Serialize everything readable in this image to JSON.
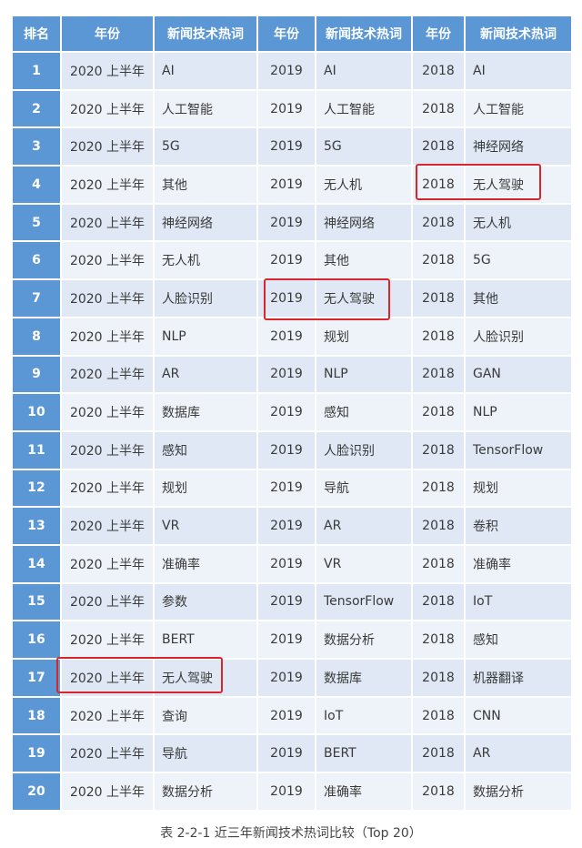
{
  "headers": [
    "排名",
    "年份",
    "新闻技术热词",
    "年份",
    "新闻技术热词",
    "年份",
    "新闻技术热词"
  ],
  "rows": [
    {
      "rank": "1",
      "y1": "2020 上半年",
      "t1": "AI",
      "y2": "2019",
      "t2": "AI",
      "y3": "2018",
      "t3": "AI"
    },
    {
      "rank": "2",
      "y1": "2020 上半年",
      "t1": "人工智能",
      "y2": "2019",
      "t2": "人工智能",
      "y3": "2018",
      "t3": "人工智能"
    },
    {
      "rank": "3",
      "y1": "2020 上半年",
      "t1": "5G",
      "y2": "2019",
      "t2": "5G",
      "y3": "2018",
      "t3": "神经网络"
    },
    {
      "rank": "4",
      "y1": "2020 上半年",
      "t1": "其他",
      "y2": "2019",
      "t2": "无人机",
      "y3": "2018",
      "t3": "无人驾驶"
    },
    {
      "rank": "5",
      "y1": "2020 上半年",
      "t1": "神经网络",
      "y2": "2019",
      "t2": "神经网络",
      "y3": "2018",
      "t3": "无人机"
    },
    {
      "rank": "6",
      "y1": "2020 上半年",
      "t1": "无人机",
      "y2": "2019",
      "t2": "其他",
      "y3": "2018",
      "t3": "5G"
    },
    {
      "rank": "7",
      "y1": "2020 上半年",
      "t1": "人脸识别",
      "y2": "2019",
      "t2": "无人驾驶",
      "y3": "2018",
      "t3": "其他"
    },
    {
      "rank": "8",
      "y1": "2020 上半年",
      "t1": "NLP",
      "y2": "2019",
      "t2": "规划",
      "y3": "2018",
      "t3": "人脸识别"
    },
    {
      "rank": "9",
      "y1": "2020 上半年",
      "t1": "AR",
      "y2": "2019",
      "t2": "NLP",
      "y3": "2018",
      "t3": "GAN"
    },
    {
      "rank": "10",
      "y1": "2020 上半年",
      "t1": "数据库",
      "y2": "2019",
      "t2": "感知",
      "y3": "2018",
      "t3": "NLP"
    },
    {
      "rank": "11",
      "y1": "2020 上半年",
      "t1": "感知",
      "y2": "2019",
      "t2": "人脸识别",
      "y3": "2018",
      "t3": "TensorFlow"
    },
    {
      "rank": "12",
      "y1": "2020 上半年",
      "t1": "规划",
      "y2": "2019",
      "t2": "导航",
      "y3": "2018",
      "t3": "规划"
    },
    {
      "rank": "13",
      "y1": "2020 上半年",
      "t1": "VR",
      "y2": "2019",
      "t2": "AR",
      "y3": "2018",
      "t3": "卷积"
    },
    {
      "rank": "14",
      "y1": "2020 上半年",
      "t1": "准确率",
      "y2": "2019",
      "t2": "VR",
      "y3": "2018",
      "t3": "准确率"
    },
    {
      "rank": "15",
      "y1": "2020 上半年",
      "t1": "参数",
      "y2": "2019",
      "t2": "TensorFlow",
      "y3": "2018",
      "t3": "IoT"
    },
    {
      "rank": "16",
      "y1": "2020 上半年",
      "t1": "BERT",
      "y2": "2019",
      "t2": "数据分析",
      "y3": "2018",
      "t3": "感知"
    },
    {
      "rank": "17",
      "y1": "2020 上半年",
      "t1": "无人驾驶",
      "y2": "2019",
      "t2": "数据库",
      "y3": "2018",
      "t3": "机器翻译"
    },
    {
      "rank": "18",
      "y1": "2020 上半年",
      "t1": "查询",
      "y2": "2019",
      "t2": "IoT",
      "y3": "2018",
      "t3": "CNN"
    },
    {
      "rank": "19",
      "y1": "2020 上半年",
      "t1": "导航",
      "y2": "2019",
      "t2": "BERT",
      "y3": "2018",
      "t3": "AR"
    },
    {
      "rank": "20",
      "y1": "2020 上半年",
      "t1": "数据分析",
      "y2": "2019",
      "t2": "准确率",
      "y3": "2018",
      "t3": "数据分析"
    }
  ],
  "caption": "表 2-2-1 近三年新闻技术热词比较（Top 20）",
  "colors": {
    "header": "#5b97d5",
    "highlight": "#d9262c",
    "row_odd": "#dfe8f4",
    "row_even": "#eef3f9"
  }
}
